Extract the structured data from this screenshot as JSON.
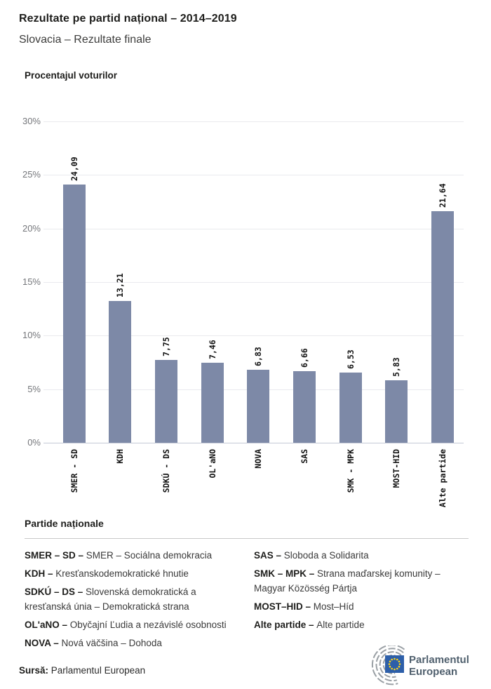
{
  "header": {
    "title": "Rezultate pe partid național – 2014–2019",
    "subtitle": "Slovacia – Rezultate finale"
  },
  "chart": {
    "axis_title": "Procentajul voturilor",
    "bar_color": "#7d89a7",
    "gridline_color": "#e9eaee",
    "axis_line_color": "#c3c9d6",
    "tick_label_color": "#75777b"
  },
  "chart_data": {
    "type": "bar",
    "title": "Procentajul voturilor",
    "categories": [
      "SMER - SD",
      "KDH",
      "SDKÚ - DS",
      "OL'aNO",
      "NOVA",
      "SAS",
      "SMK - MPK",
      "MOST-HID",
      "Alte partide"
    ],
    "values": [
      24.09,
      13.21,
      7.75,
      7.46,
      6.83,
      6.66,
      6.53,
      5.83,
      21.64
    ],
    "value_labels": [
      "24,09",
      "13,21",
      "7,75",
      "7,46",
      "6,83",
      "6,66",
      "6,53",
      "5,83",
      "21,64"
    ],
    "y_ticks": [
      30,
      25,
      20,
      15,
      10,
      5,
      0
    ],
    "y_tick_labels": [
      "30%",
      "25%",
      "20%",
      "15%",
      "10%",
      "5%",
      "0%"
    ],
    "ylim": [
      0,
      30
    ],
    "xlabel": "",
    "ylabel": "Procentajul voturilor",
    "grid": true,
    "legend_position": "none"
  },
  "legend": {
    "heading": "Partide naționale",
    "columns": [
      [
        {
          "abbr": "SMER – SD – ",
          "name": "SMER – Sociálna demokracia"
        },
        {
          "abbr": "KDH – ",
          "name": "Kresťanskodemokratické hnutie"
        },
        {
          "abbr": "SDKÚ – DS – ",
          "name": "Slovenská demokratická a kresťanská únia – Demokratická strana"
        },
        {
          "abbr": "OL'aNO – ",
          "name": "Obyčajní Ľudia a nezávislé osobnosti"
        },
        {
          "abbr": "NOVA – ",
          "name": "Nová väčšina – Dohoda"
        }
      ],
      [
        {
          "abbr": "SAS – ",
          "name": "Sloboda a Solidarita"
        },
        {
          "abbr": "SMK – MPK – ",
          "name": "Strana maďarskej komunity – Magyar Közösség Pártja"
        },
        {
          "abbr": "MOST–HID – ",
          "name": "Most–Híd"
        },
        {
          "abbr": "Alte partide – ",
          "name": "Alte partide"
        }
      ]
    ]
  },
  "footer": {
    "source_label": "Sursă:",
    "source_text": " Parlamentul European",
    "logo_line1": "Parlamentul",
    "logo_line2": "European",
    "logo_colors": {
      "hemicycle": "#9aa0a5",
      "flag_blue": "#2d5fa9",
      "star_yellow": "#ffd617",
      "text": "#4f5f6d"
    }
  }
}
